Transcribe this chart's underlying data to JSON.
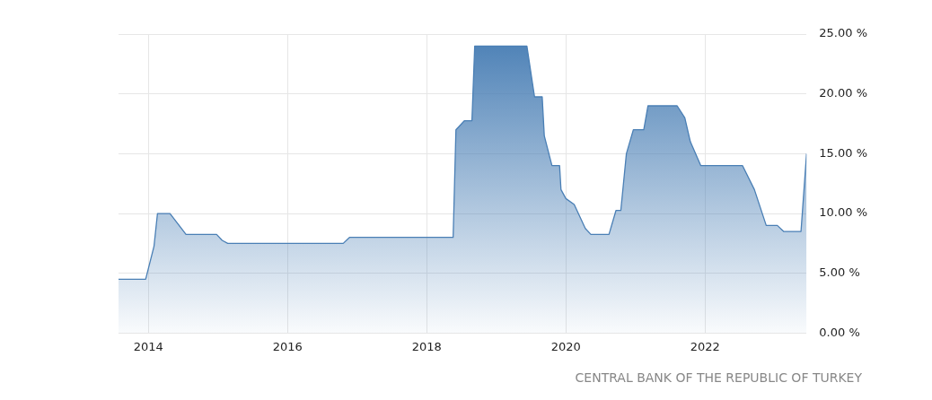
{
  "chart_data": {
    "type": "area",
    "annotations": [
      "CENTRAL BANK OF THE REPUBLIC OF TURKEY"
    ],
    "x": [
      2013.57,
      2013.96,
      2014.08,
      2014.13,
      2014.31,
      2014.54,
      2014.98,
      2015.06,
      2015.14,
      2016.8,
      2016.89,
      2018.38,
      2018.42,
      2018.54,
      2018.65,
      2018.69,
      2019.44,
      2019.55,
      2019.66,
      2019.69,
      2019.8,
      2019.91,
      2019.93,
      2020.0,
      2020.12,
      2020.28,
      2020.36,
      2020.62,
      2020.72,
      2020.79,
      2020.87,
      2020.97,
      2021.12,
      2021.18,
      2021.6,
      2021.71,
      2021.79,
      2021.94,
      2022.54,
      2022.71,
      2022.88,
      2023.04,
      2023.13,
      2023.38,
      2023.46
    ],
    "series": [
      {
        "color": "#4a7fb5",
        "values": [
          4.5,
          4.5,
          7.25,
          10,
          10,
          8.25,
          8.25,
          7.75,
          7.5,
          7.5,
          8,
          8,
          17,
          17.75,
          17.75,
          24,
          24,
          19.75,
          19.75,
          16.5,
          14,
          14,
          12,
          11.25,
          10.75,
          8.75,
          8.25,
          8.25,
          10.25,
          10.25,
          15,
          17,
          17,
          19,
          19,
          18,
          16,
          14,
          14,
          12,
          9,
          9,
          8.5,
          8.5,
          15
        ]
      }
    ],
    "xlim": [
      2013.57,
      2023.46
    ],
    "xticks": [
      2014,
      2016,
      2018,
      2020,
      2022
    ],
    "ylim": [
      0,
      25
    ],
    "yticks": [
      {
        "value": 0,
        "label": "0.00 %"
      },
      {
        "value": 5,
        "label": "5.00 %"
      },
      {
        "value": 10,
        "label": "10.00 %"
      },
      {
        "value": 15,
        "label": "15.00 %"
      },
      {
        "value": 20,
        "label": "20.00 %"
      },
      {
        "value": 25,
        "label": "25.00 %"
      }
    ],
    "grid": true,
    "legend": false,
    "marker": "none",
    "line_style": "solid"
  }
}
